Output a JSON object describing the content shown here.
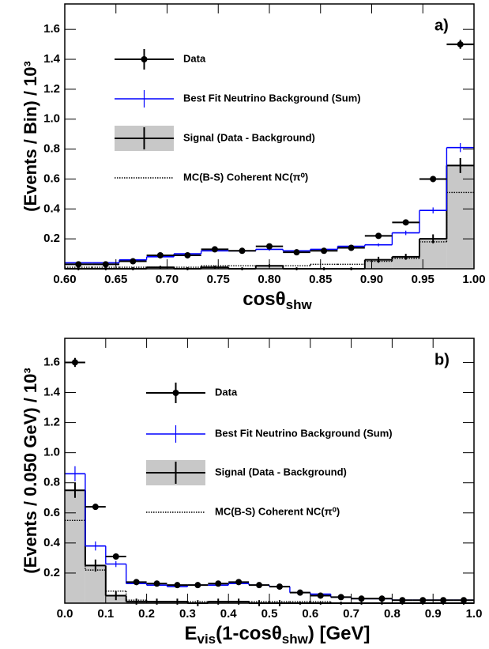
{
  "chart_data": [
    {
      "type": "histogram",
      "panel_label": "a)",
      "y_label": "(Events / Bin) / 10³",
      "x_label_parts": [
        {
          "text": "cosθ"
        },
        {
          "text": "shw",
          "sub": true
        }
      ],
      "bins": [
        0.6,
        0.6267,
        0.6533,
        0.68,
        0.7067,
        0.7333,
        0.76,
        0.7867,
        0.8133,
        0.84,
        0.8667,
        0.8933,
        0.92,
        0.9467,
        0.9733,
        1.0
      ],
      "xlim": [
        0.6,
        1.0
      ],
      "xticks": [
        {
          "value": 0.6,
          "label": "0.60"
        },
        {
          "value": 0.65,
          "label": "0.65"
        },
        {
          "value": 0.7,
          "label": "0.70"
        },
        {
          "value": 0.75,
          "label": "0.75"
        },
        {
          "value": 0.8,
          "label": "0.80"
        },
        {
          "value": 0.85,
          "label": "0.85"
        },
        {
          "value": 0.9,
          "label": "0.90"
        },
        {
          "value": 0.95,
          "label": "0.95"
        },
        {
          "value": 1.0,
          "label": "1.00"
        }
      ],
      "ylim": [
        0,
        1.77
      ],
      "yticks": [
        0.2,
        0.4,
        0.6,
        0.8,
        {
          "value": 1.0,
          "label": "1.0"
        },
        1.2,
        1.4,
        1.6
      ],
      "series": [
        {
          "name": "Data",
          "style": "points",
          "color": "#000000",
          "values": [
            0.03,
            0.03,
            0.05,
            0.09,
            0.09,
            0.13,
            0.12,
            0.15,
            0.11,
            0.12,
            0.14,
            0.22,
            0.31,
            0.6,
            1.5
          ],
          "errors": [
            0.01,
            0.01,
            0.01,
            0.01,
            0.01,
            0.01,
            0.01,
            0.01,
            0.01,
            0.01,
            0.01,
            0.015,
            0.015,
            0.02,
            0.03
          ]
        },
        {
          "name": "Best Fit Neutrino Background (Sum)",
          "style": "step",
          "color": "#0000ff",
          "values": [
            0.04,
            0.04,
            0.06,
            0.08,
            0.1,
            0.12,
            0.12,
            0.13,
            0.12,
            0.13,
            0.15,
            0.16,
            0.24,
            0.39,
            0.81
          ],
          "errors": [
            0.01,
            0.01,
            0.01,
            0.01,
            0.01,
            0.01,
            0.01,
            0.01,
            0.01,
            0.01,
            0.01,
            0.01,
            0.015,
            0.02,
            0.03
          ]
        },
        {
          "name": "Signal (Data - Background)",
          "style": "filled",
          "color": "#c8c8c8",
          "values": [
            0.0,
            0.0,
            0.0,
            0.01,
            0.0,
            0.01,
            0.0,
            0.02,
            0.0,
            0.0,
            0.0,
            0.06,
            0.08,
            0.2,
            0.69
          ],
          "errors": [
            0.01,
            0.01,
            0.01,
            0.01,
            0.01,
            0.01,
            0.01,
            0.01,
            0.01,
            0.01,
            0.01,
            0.02,
            0.02,
            0.03,
            0.05
          ]
        },
        {
          "name": "MC(B-S) Coherent NC(π⁰)",
          "style": "dotted",
          "color": "#000000",
          "values": [
            0.01,
            0.01,
            0.01,
            0.01,
            0.01,
            0.02,
            0.02,
            0.02,
            0.02,
            0.03,
            0.03,
            0.05,
            0.07,
            0.18,
            0.51
          ]
        }
      ]
    },
    {
      "type": "histogram",
      "panel_label": "b)",
      "y_label": "(Events / 0.050 GeV) / 10³",
      "x_label_parts": [
        {
          "text": "E"
        },
        {
          "text": "vis",
          "sub": true
        },
        {
          "text": "(1-cosθ"
        },
        {
          "text": "shw",
          "sub": true
        },
        {
          "text": ") [GeV]"
        }
      ],
      "bins": [
        0,
        0.05,
        0.1,
        0.15,
        0.2,
        0.25,
        0.3,
        0.35,
        0.4,
        0.45,
        0.5,
        0.55,
        0.6,
        0.65,
        0.7,
        0.75,
        0.8,
        0.85,
        0.9,
        0.95,
        1.0
      ],
      "xlim": [
        0,
        1.0
      ],
      "xticks": [
        {
          "value": 0,
          "label": "0.0"
        },
        0.1,
        0.2,
        0.3,
        0.4,
        0.5,
        0.6,
        0.7,
        0.8,
        0.9,
        {
          "value": 1.0,
          "label": "1.0"
        }
      ],
      "ylim": [
        0,
        1.76
      ],
      "yticks": [
        0.2,
        0.4,
        0.6,
        0.8,
        {
          "value": 1.0,
          "label": "1.0"
        },
        1.2,
        1.4,
        1.6
      ],
      "series": [
        {
          "name": "Data",
          "style": "points",
          "color": "#000000",
          "values": [
            1.6,
            0.64,
            0.31,
            0.14,
            0.13,
            0.12,
            0.12,
            0.13,
            0.14,
            0.12,
            0.11,
            0.07,
            0.05,
            0.04,
            0.03,
            0.03,
            0.02,
            0.02,
            0.02,
            0.02
          ],
          "errors": [
            0.03,
            0.02,
            0.015,
            0.01,
            0.01,
            0.01,
            0.01,
            0.01,
            0.01,
            0.01,
            0.01,
            0.01,
            0.01,
            0.01,
            0.01,
            0.01,
            0.01,
            0.01,
            0.01,
            0.01
          ]
        },
        {
          "name": "Best Fit Neutrino Background (Sum)",
          "style": "step",
          "color": "#0000ff",
          "values": [
            0.86,
            0.38,
            0.26,
            0.13,
            0.12,
            0.11,
            0.12,
            0.12,
            0.13,
            0.12,
            0.11,
            0.07,
            0.06,
            0.04,
            0.03,
            0.03,
            0.02,
            0.02,
            0.02,
            0.02
          ],
          "errors": [
            0.05,
            0.03,
            0.02,
            0.01,
            0.01,
            0.01,
            0.01,
            0.01,
            0.01,
            0.01,
            0.01,
            0.01,
            0.01,
            0.01,
            0.01,
            0.01,
            0.01,
            0.01,
            0.01,
            0.01
          ]
        },
        {
          "name": "Signal (Data - Background)",
          "style": "filled",
          "color": "#c8c8c8",
          "values": [
            0.75,
            0.25,
            0.05,
            0.01,
            0.01,
            0.01,
            0.0,
            0.01,
            0.01,
            0.0,
            0.0,
            0.0,
            0.0,
            0.0,
            0.0,
            0.0,
            0.0,
            0.0,
            0.0,
            0.0
          ],
          "errors": [
            0.05,
            0.04,
            0.03,
            0.02,
            0.02,
            0.02,
            0.02,
            0.02,
            0.02,
            0.02,
            0.02,
            0.01,
            0.01,
            0.01,
            0.01,
            0.01,
            0.01,
            0.01,
            0.01,
            0.01
          ]
        },
        {
          "name": "MC(B-S) Coherent NC(π⁰)",
          "style": "dotted",
          "color": "#000000",
          "values": [
            0.55,
            0.22,
            0.08,
            0.02,
            0.01,
            0.01,
            0.01,
            0.01,
            0.01,
            0.01,
            0.01,
            0.01,
            0.01,
            0.0,
            0.0,
            0.0,
            0.0,
            0.0,
            0.0,
            0.0
          ]
        }
      ]
    }
  ]
}
